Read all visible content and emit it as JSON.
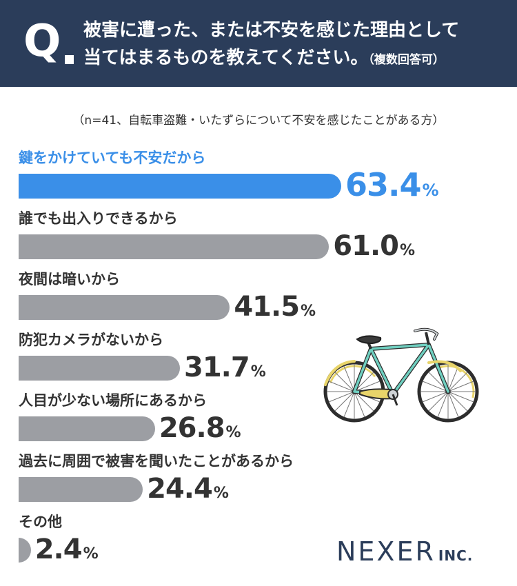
{
  "header": {
    "q_mark": "Q",
    "question_line1": "被害に遭った、または不安を感じた理由として",
    "question_line2": "当てはまるものを教えてください。",
    "question_note": "（複数回答可）"
  },
  "sample_note": "（n=41、自転車盗難・いたずらについて不安を感じたことがある方）",
  "chart_data": {
    "type": "bar",
    "orientation": "horizontal",
    "categories": [
      "鍵をかけていても不安だから",
      "誰でも出入りできるから",
      "夜間は暗いから",
      "防犯カメラがないから",
      "人目が少ない場所にあるから",
      "過去に周囲で被害を聞いたことがあるから",
      "その他"
    ],
    "values": [
      63.4,
      61.0,
      41.5,
      31.7,
      26.8,
      24.4,
      2.4
    ],
    "value_labels": [
      "63.4",
      "61.0",
      "41.5",
      "31.7",
      "26.8",
      "24.4",
      "2.4"
    ],
    "unit": "%",
    "highlight_index": 0,
    "colors": {
      "highlight": "#3a8fe8",
      "default": "#9c9ea3"
    }
  },
  "colors": {
    "header_bg": "#2b3d5a",
    "logo": "#2b3d5a"
  },
  "illustration": "bicycle-icon",
  "logo": {
    "main": "NEXER",
    "inc": "INC."
  }
}
